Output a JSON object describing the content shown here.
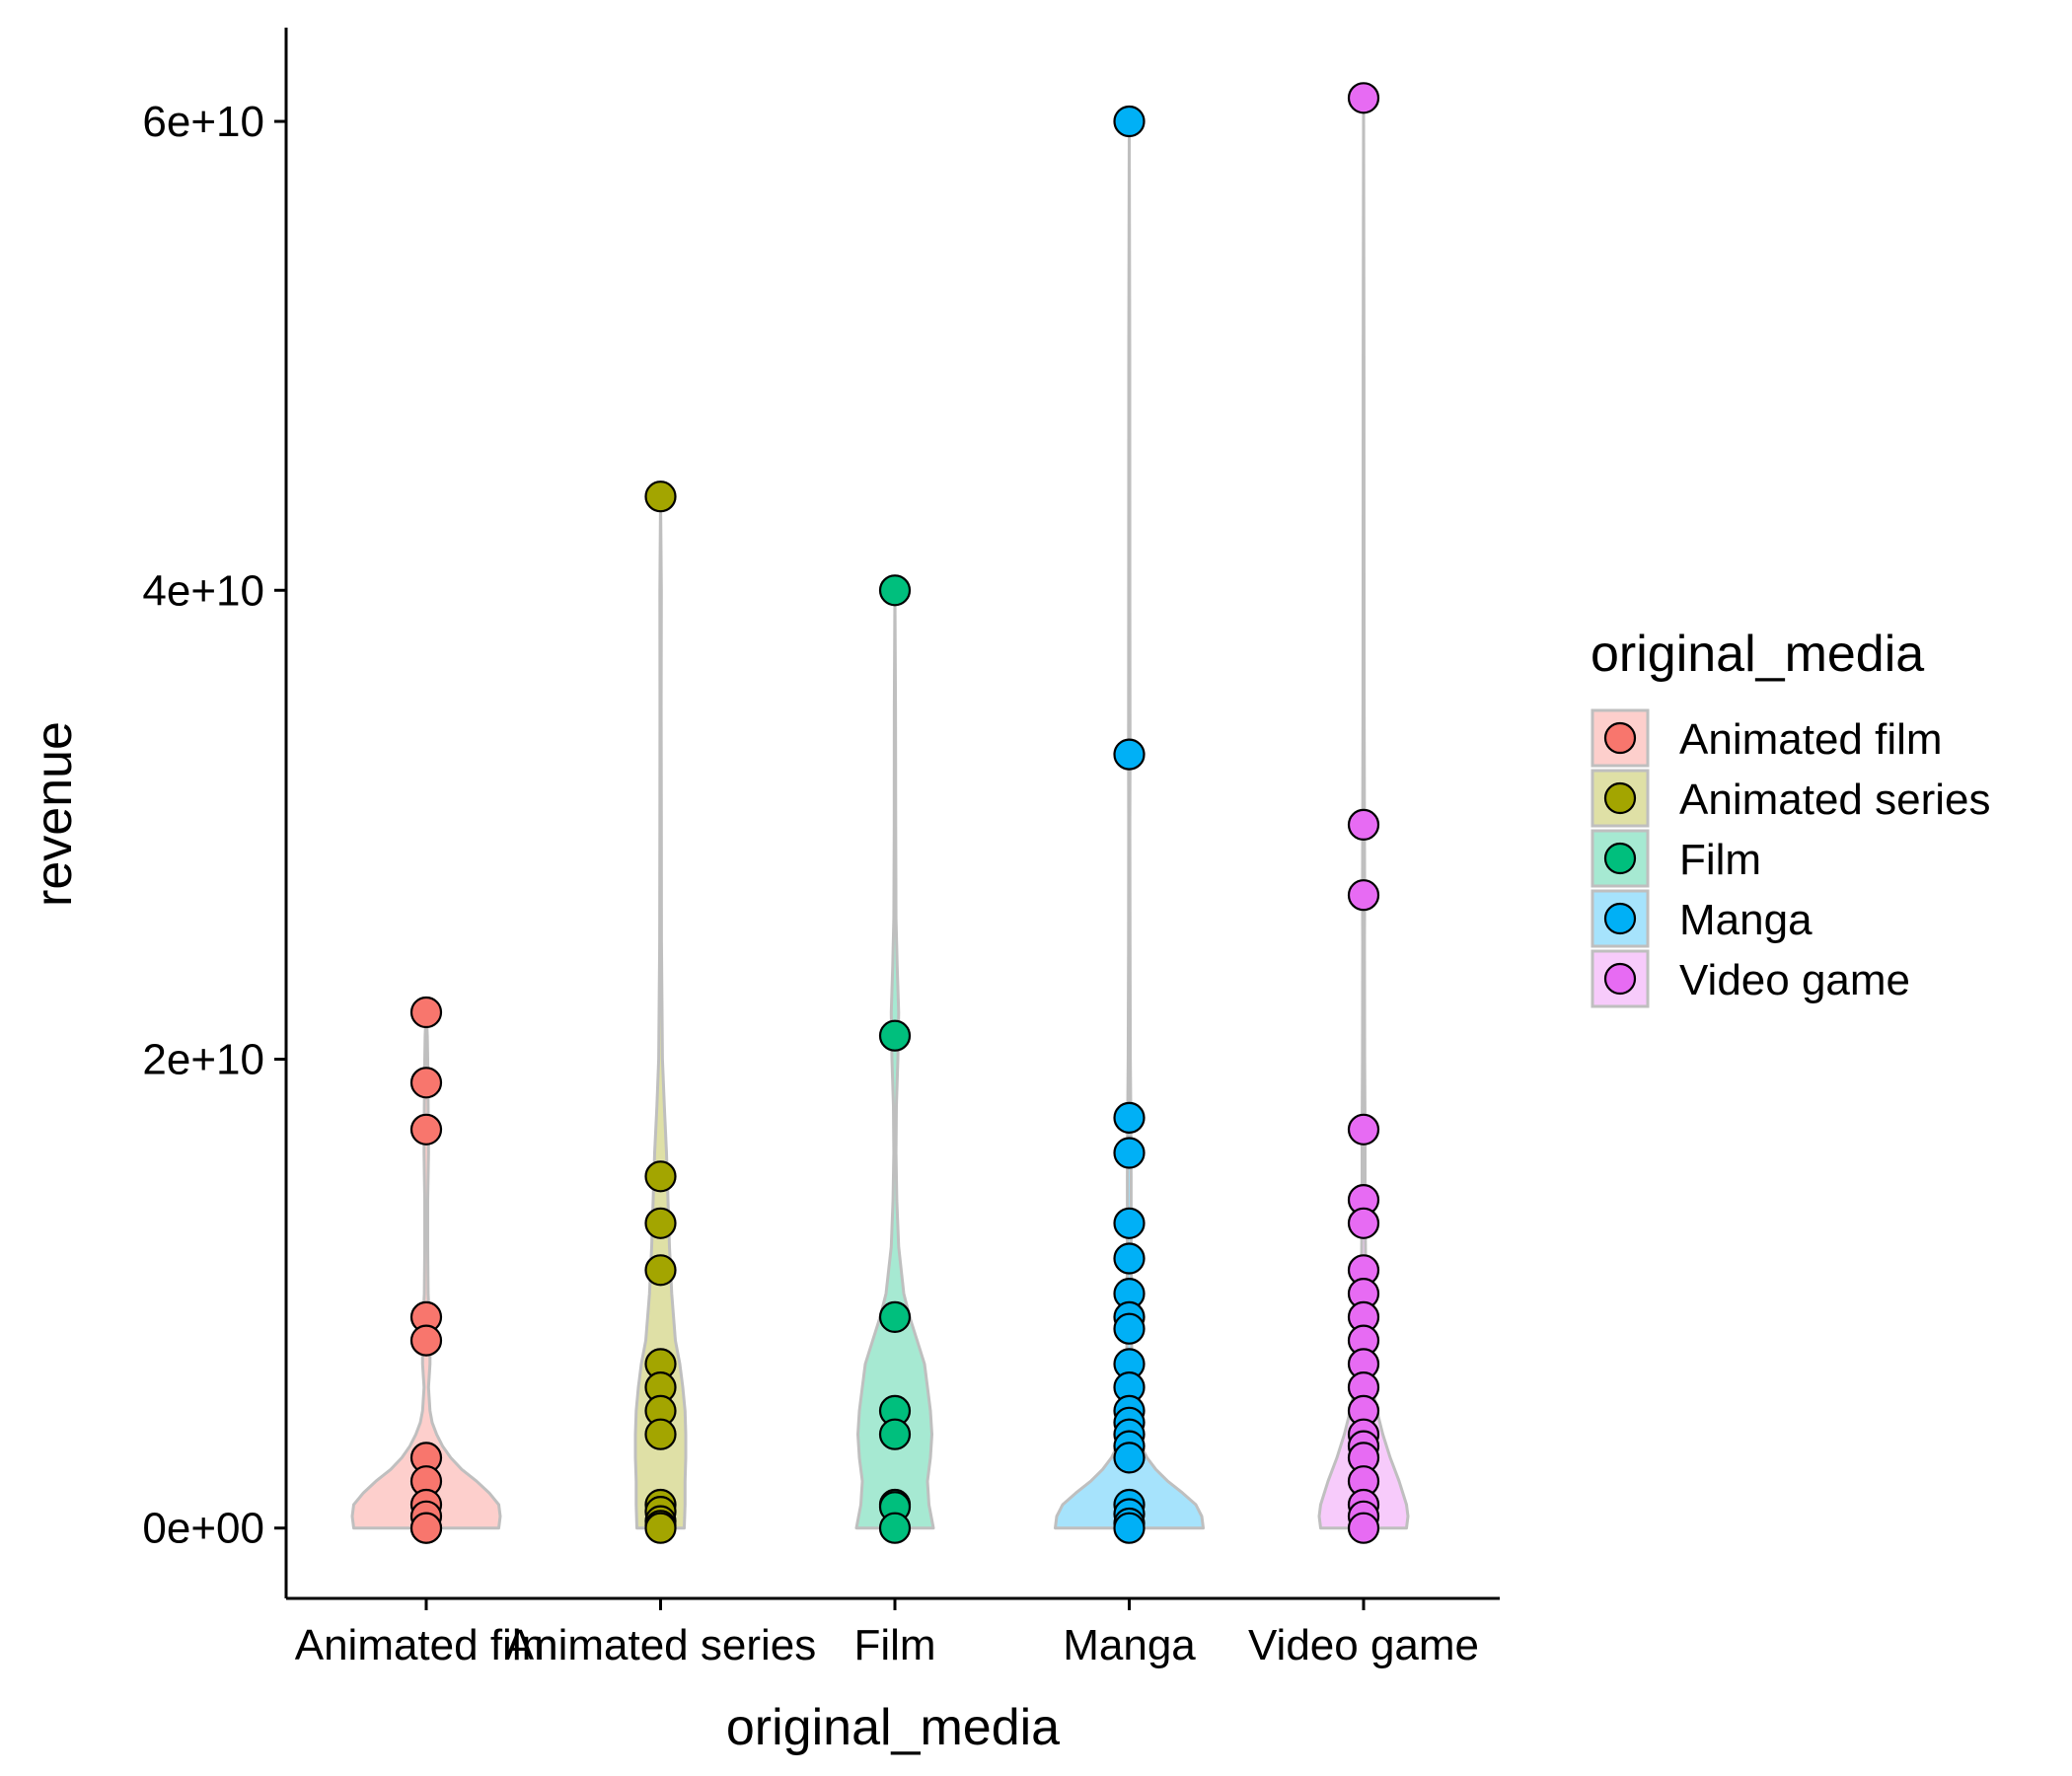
{
  "chart_data": {
    "type": "violin",
    "xlabel": "original_media",
    "ylabel": "revenue",
    "categories": [
      "Animated film",
      "Animated series",
      "Film",
      "Manga",
      "Video game"
    ],
    "ylim": [
      -3000000000,
      64000000000
    ],
    "yticks": [
      0,
      20000000000,
      40000000000,
      60000000000
    ],
    "ytick_labels": [
      "0e+00",
      "2e+10",
      "4e+10",
      "6e+10"
    ],
    "grid": false,
    "legend": {
      "title": "original_media",
      "position": "right",
      "entries": [
        "Animated film",
        "Animated series",
        "Film",
        "Manga",
        "Video game"
      ]
    },
    "colors": {
      "Animated film": "#F8766D",
      "Animated series": "#A3A500",
      "Film": "#00BF7D",
      "Manga": "#00B0F6",
      "Video game": "#E76BF3"
    },
    "violin_outline_color": "#BFBFBF",
    "series": [
      {
        "name": "Animated film",
        "values": [
          22000000000,
          19000000000,
          17000000000,
          9000000000,
          8000000000,
          3000000000,
          2000000000,
          1000000000,
          500000000,
          0,
          0
        ]
      },
      {
        "name": "Animated series",
        "values": [
          44000000000,
          15000000000,
          13000000000,
          11000000000,
          7000000000,
          6000000000,
          5000000000,
          4000000000,
          1000000000,
          700000000,
          300000000,
          100000000,
          0
        ]
      },
      {
        "name": "Film",
        "values": [
          40000000000,
          21000000000,
          9000000000,
          5000000000,
          4000000000,
          1000000000,
          900000000,
          0
        ]
      },
      {
        "name": "Manga",
        "values": [
          60000000000,
          33000000000,
          17500000000,
          16000000000,
          13000000000,
          11500000000,
          10000000000,
          9000000000,
          8500000000,
          7000000000,
          6000000000,
          5000000000,
          4500000000,
          4000000000,
          3500000000,
          3000000000,
          1000000000,
          600000000,
          200000000,
          0
        ]
      },
      {
        "name": "Video game",
        "values": [
          61000000000,
          30000000000,
          27000000000,
          17000000000,
          14000000000,
          13000000000,
          11000000000,
          10000000000,
          9000000000,
          8000000000,
          7000000000,
          6000000000,
          5000000000,
          4000000000,
          3500000000,
          3000000000,
          2000000000,
          1000000000,
          500000000,
          0
        ]
      }
    ],
    "violin_profiles": [
      {
        "name": "Animated film",
        "y": [
          0,
          500000000,
          1000000000,
          1500000000,
          2000000000,
          2500000000,
          3000000000,
          3500000000,
          4000000000,
          4500000000,
          5000000000,
          6000000000,
          7000000000,
          8000000000,
          9000000000,
          10000000000,
          12000000000,
          14000000000,
          16000000000,
          18000000000,
          20000000000,
          21000000000,
          22000000000
        ],
        "width": [
          0.98,
          1.0,
          0.98,
          0.85,
          0.68,
          0.48,
          0.33,
          0.22,
          0.14,
          0.08,
          0.05,
          0.03,
          0.05,
          0.05,
          0.04,
          0.025,
          0.02,
          0.02,
          0.03,
          0.025,
          0.02,
          0.015,
          0.0
        ]
      },
      {
        "name": "Animated series",
        "y": [
          0,
          1000000000,
          2000000000,
          3000000000,
          4000000000,
          5000000000,
          6000000000,
          7000000000,
          8000000000,
          10000000000,
          12000000000,
          14000000000,
          16000000000,
          18000000000,
          20000000000,
          25000000000,
          30000000000,
          35000000000,
          40000000000,
          44000000000
        ],
        "width": [
          0.32,
          0.33,
          0.33,
          0.34,
          0.34,
          0.33,
          0.3,
          0.26,
          0.2,
          0.15,
          0.12,
          0.1,
          0.08,
          0.05,
          0.025,
          0.012,
          0.01,
          0.008,
          0.01,
          0.0
        ]
      },
      {
        "name": "Film",
        "y": [
          0,
          1000000000,
          2000000000,
          3000000000,
          4000000000,
          5000000000,
          6000000000,
          7000000000,
          8000000000,
          9000000000,
          10000000000,
          12000000000,
          14000000000,
          16000000000,
          18000000000,
          20000000000,
          22000000000,
          24000000000,
          26000000000,
          30000000000,
          35000000000,
          40000000000
        ],
        "width": [
          0.52,
          0.46,
          0.44,
          0.48,
          0.5,
          0.48,
          0.44,
          0.4,
          0.3,
          0.2,
          0.12,
          0.05,
          0.025,
          0.015,
          0.02,
          0.04,
          0.05,
          0.03,
          0.015,
          0.01,
          0.008,
          0.0
        ]
      },
      {
        "name": "Manga",
        "y": [
          0,
          500000000,
          1000000000,
          1500000000,
          2000000000,
          2500000000,
          3000000000,
          3500000000,
          4000000000,
          4500000000,
          5000000000,
          6000000000,
          7000000000,
          8000000000,
          10000000000,
          12000000000,
          15000000000,
          18000000000,
          20000000000,
          25000000000,
          30000000000,
          33000000000,
          40000000000,
          50000000000,
          60000000000
        ],
        "width": [
          1.0,
          0.98,
          0.9,
          0.72,
          0.52,
          0.36,
          0.24,
          0.16,
          0.1,
          0.07,
          0.05,
          0.04,
          0.04,
          0.03,
          0.03,
          0.025,
          0.025,
          0.02,
          0.015,
          0.01,
          0.008,
          0.01,
          0.008,
          0.006,
          0.0
        ]
      },
      {
        "name": "Video game",
        "y": [
          0,
          500000000,
          1000000000,
          2000000000,
          3000000000,
          4000000000,
          5000000000,
          6000000000,
          7000000000,
          8000000000,
          10000000000,
          12000000000,
          14000000000,
          17000000000,
          20000000000,
          25000000000,
          27000000000,
          30000000000,
          35000000000,
          40000000000,
          50000000000,
          61000000000
        ],
        "width": [
          0.58,
          0.6,
          0.58,
          0.48,
          0.36,
          0.26,
          0.18,
          0.12,
          0.08,
          0.05,
          0.03,
          0.025,
          0.02,
          0.02,
          0.015,
          0.012,
          0.015,
          0.012,
          0.008,
          0.006,
          0.005,
          0.0
        ]
      }
    ]
  }
}
